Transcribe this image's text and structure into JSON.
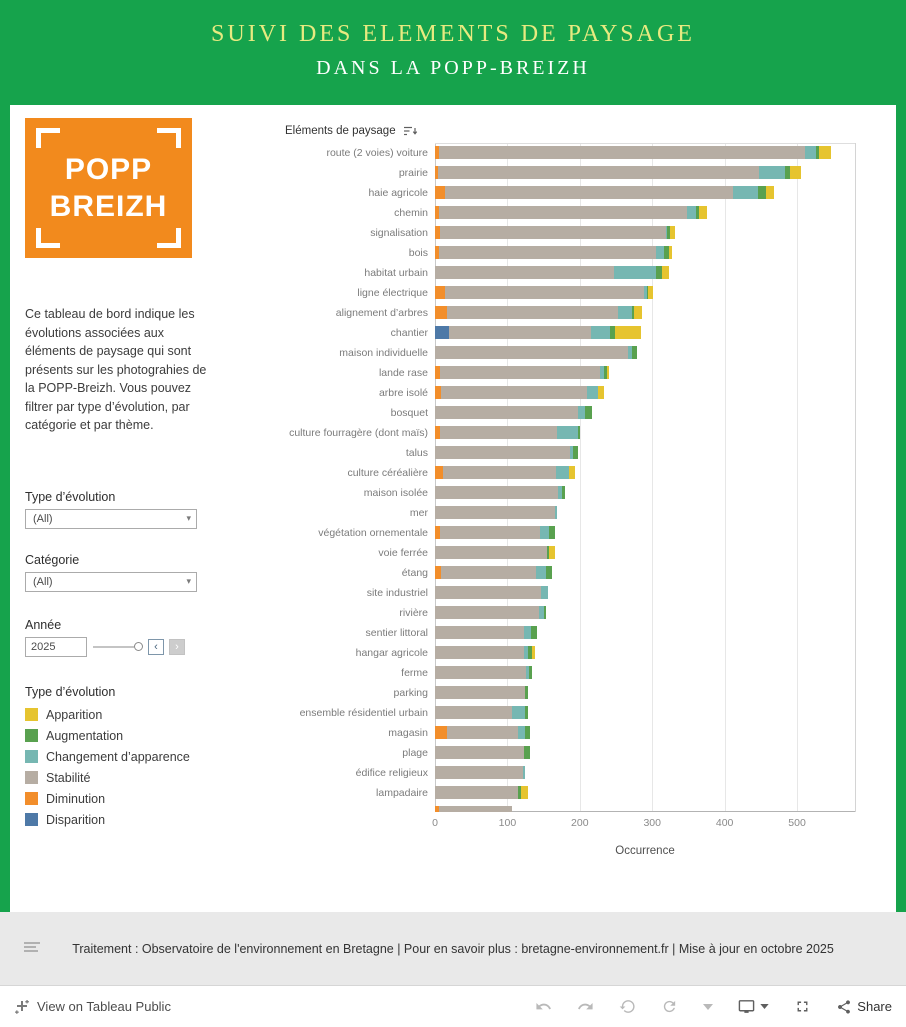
{
  "colors": {
    "header_green": "#16a34c",
    "title_yellow": "#e7ea80",
    "logo_orange": "#f28a1d",
    "footer_gray": "#e9e9e9"
  },
  "header": {
    "title_line1": "SUIVI DES ELEMENTS DE PAYSAGE",
    "title_line2": "DANS LA POPP-BREIZH"
  },
  "sidebar": {
    "logo_line1": "POPP",
    "logo_line2": "BREIZH",
    "description": "Ce tableau de bord indique les évolutions associées aux éléments de paysage qui sont présents sur les photograhies de la POPP-Breizh. Vous pouvez filtrer par type d’évolution, par catégorie et par thème.",
    "filter_type": {
      "label": "Type d’évolution",
      "value": "(All)"
    },
    "filter_category": {
      "label": "Catégorie",
      "value": "(All)"
    },
    "filter_year": {
      "label": "Année",
      "value": "2025"
    },
    "legend_title": "Type d’évolution"
  },
  "chart_data": {
    "type": "bar",
    "orientation": "horizontal",
    "stacked": true,
    "title": "Eléments de paysage",
    "xlabel": "Occurrence",
    "xlim": [
      0,
      580
    ],
    "xticks": [
      0,
      100,
      200,
      300,
      400,
      500
    ],
    "grid": true,
    "legend_position": "sidebar-left",
    "stack_order": [
      "disparition",
      "diminution",
      "stabilite",
      "changement",
      "augmentation",
      "apparition"
    ],
    "colors": {
      "apparition": "#e6c42f",
      "augmentation": "#59a14f",
      "changement": "#76b7b2",
      "stabilite": "#b6ada3",
      "diminution": "#f28e2b",
      "disparition": "#4e79a7"
    },
    "legend": [
      {
        "key": "apparition",
        "label": "Apparition"
      },
      {
        "key": "augmentation",
        "label": "Augmentation"
      },
      {
        "key": "changement",
        "label": "Changement d’apparence"
      },
      {
        "key": "stabilite",
        "label": "Stabilité"
      },
      {
        "key": "diminution",
        "label": "Diminution"
      },
      {
        "key": "disparition",
        "label": "Disparition"
      }
    ],
    "rows": [
      {
        "label": "route (2 voies) voiture",
        "diminution": 6,
        "stabilite": 505,
        "changement": 15,
        "augmentation": 5,
        "apparition": 16
      },
      {
        "label": "prairie",
        "diminution": 4,
        "stabilite": 444,
        "changement": 35,
        "augmentation": 8,
        "apparition": 15
      },
      {
        "label": "haie agricole",
        "diminution": 14,
        "stabilite": 398,
        "changement": 34,
        "augmentation": 11,
        "apparition": 11
      },
      {
        "label": "chemin",
        "diminution": 5,
        "stabilite": 343,
        "changement": 12,
        "augmentation": 4,
        "apparition": 12
      },
      {
        "label": "signalisation",
        "diminution": 7,
        "stabilite": 312,
        "changement": 2,
        "augmentation": 4,
        "apparition": 6
      },
      {
        "label": "bois",
        "diminution": 6,
        "stabilite": 300,
        "changement": 10,
        "augmentation": 8,
        "apparition": 3
      },
      {
        "label": "habitat urbain",
        "stabilite": 247,
        "changement": 58,
        "augmentation": 9,
        "apparition": 9
      },
      {
        "label": "ligne électrique",
        "diminution": 14,
        "stabilite": 275,
        "changement": 4,
        "augmentation": 2,
        "apparition": 6
      },
      {
        "label": "alignement d’arbres",
        "diminution": 17,
        "stabilite": 236,
        "changement": 19,
        "augmentation": 3,
        "apparition": 11
      },
      {
        "label": "chantier",
        "disparition": 19,
        "stabilite": 197,
        "changement": 26,
        "augmentation": 6,
        "apparition": 37
      },
      {
        "label": "maison individuelle",
        "stabilite": 266,
        "changement": 6,
        "augmentation": 7
      },
      {
        "label": "lande rase",
        "diminution": 7,
        "stabilite": 221,
        "changement": 5,
        "augmentation": 4,
        "apparition": 4
      },
      {
        "label": "arbre isolé",
        "diminution": 8,
        "stabilite": 202,
        "changement": 15,
        "apparition": 9
      },
      {
        "label": "bosquet",
        "stabilite": 198,
        "changement": 9,
        "augmentation": 10
      },
      {
        "label": "culture fourragère (dont maïs)",
        "diminution": 7,
        "stabilite": 162,
        "changement": 29,
        "augmentation": 2
      },
      {
        "label": "talus",
        "stabilite": 187,
        "changement": 3,
        "augmentation": 7
      },
      {
        "label": "culture céréalière",
        "diminution": 11,
        "stabilite": 156,
        "changement": 18,
        "apparition": 8
      },
      {
        "label": "maison isolée",
        "stabilite": 170,
        "changement": 5,
        "augmentation": 4
      },
      {
        "label": "mer",
        "stabilite": 166,
        "changement": 2
      },
      {
        "label": "végétation ornementale",
        "diminution": 7,
        "stabilite": 138,
        "changement": 12,
        "augmentation": 9
      },
      {
        "label": "voie ferrée",
        "stabilite": 154,
        "augmentation": 3,
        "apparition": 9
      },
      {
        "label": "étang",
        "diminution": 8,
        "stabilite": 131,
        "changement": 14,
        "augmentation": 8
      },
      {
        "label": "site industriel",
        "stabilite": 146,
        "changement": 10
      },
      {
        "label": "rivière",
        "stabilite": 144,
        "changement": 6,
        "augmentation": 4
      },
      {
        "label": "sentier littoral",
        "stabilite": 123,
        "changement": 10,
        "augmentation": 8
      },
      {
        "label": "hangar agricole",
        "stabilite": 123,
        "changement": 5,
        "augmentation": 6,
        "apparition": 4
      },
      {
        "label": "ferme",
        "stabilite": 126,
        "changement": 4,
        "augmentation": 4
      },
      {
        "label": "parking",
        "stabilite": 124,
        "augmentation": 4
      },
      {
        "label": "ensemble résidentiel urbain",
        "stabilite": 106,
        "changement": 18,
        "augmentation": 4
      },
      {
        "label": "magasin",
        "diminution": 17,
        "stabilite": 98,
        "changement": 10,
        "augmentation": 6
      },
      {
        "label": "plage",
        "stabilite": 123,
        "augmentation": 8
      },
      {
        "label": "édifice religieux",
        "stabilite": 121,
        "changement": 3
      },
      {
        "label": "lampadaire",
        "stabilite": 115,
        "augmentation": 4,
        "apparition": 9
      },
      {
        "label": "",
        "diminution": 6,
        "stabilite": 100,
        "clipped": true
      }
    ]
  },
  "footer": {
    "text": "Traitement : Observatoire de l'environnement en Bretagne | Pour en savoir plus : bretagne-environnement.fr | Mise à jour en octobre 2025"
  },
  "toolbar": {
    "view_label": "View on Tableau Public",
    "share_label": "Share"
  }
}
